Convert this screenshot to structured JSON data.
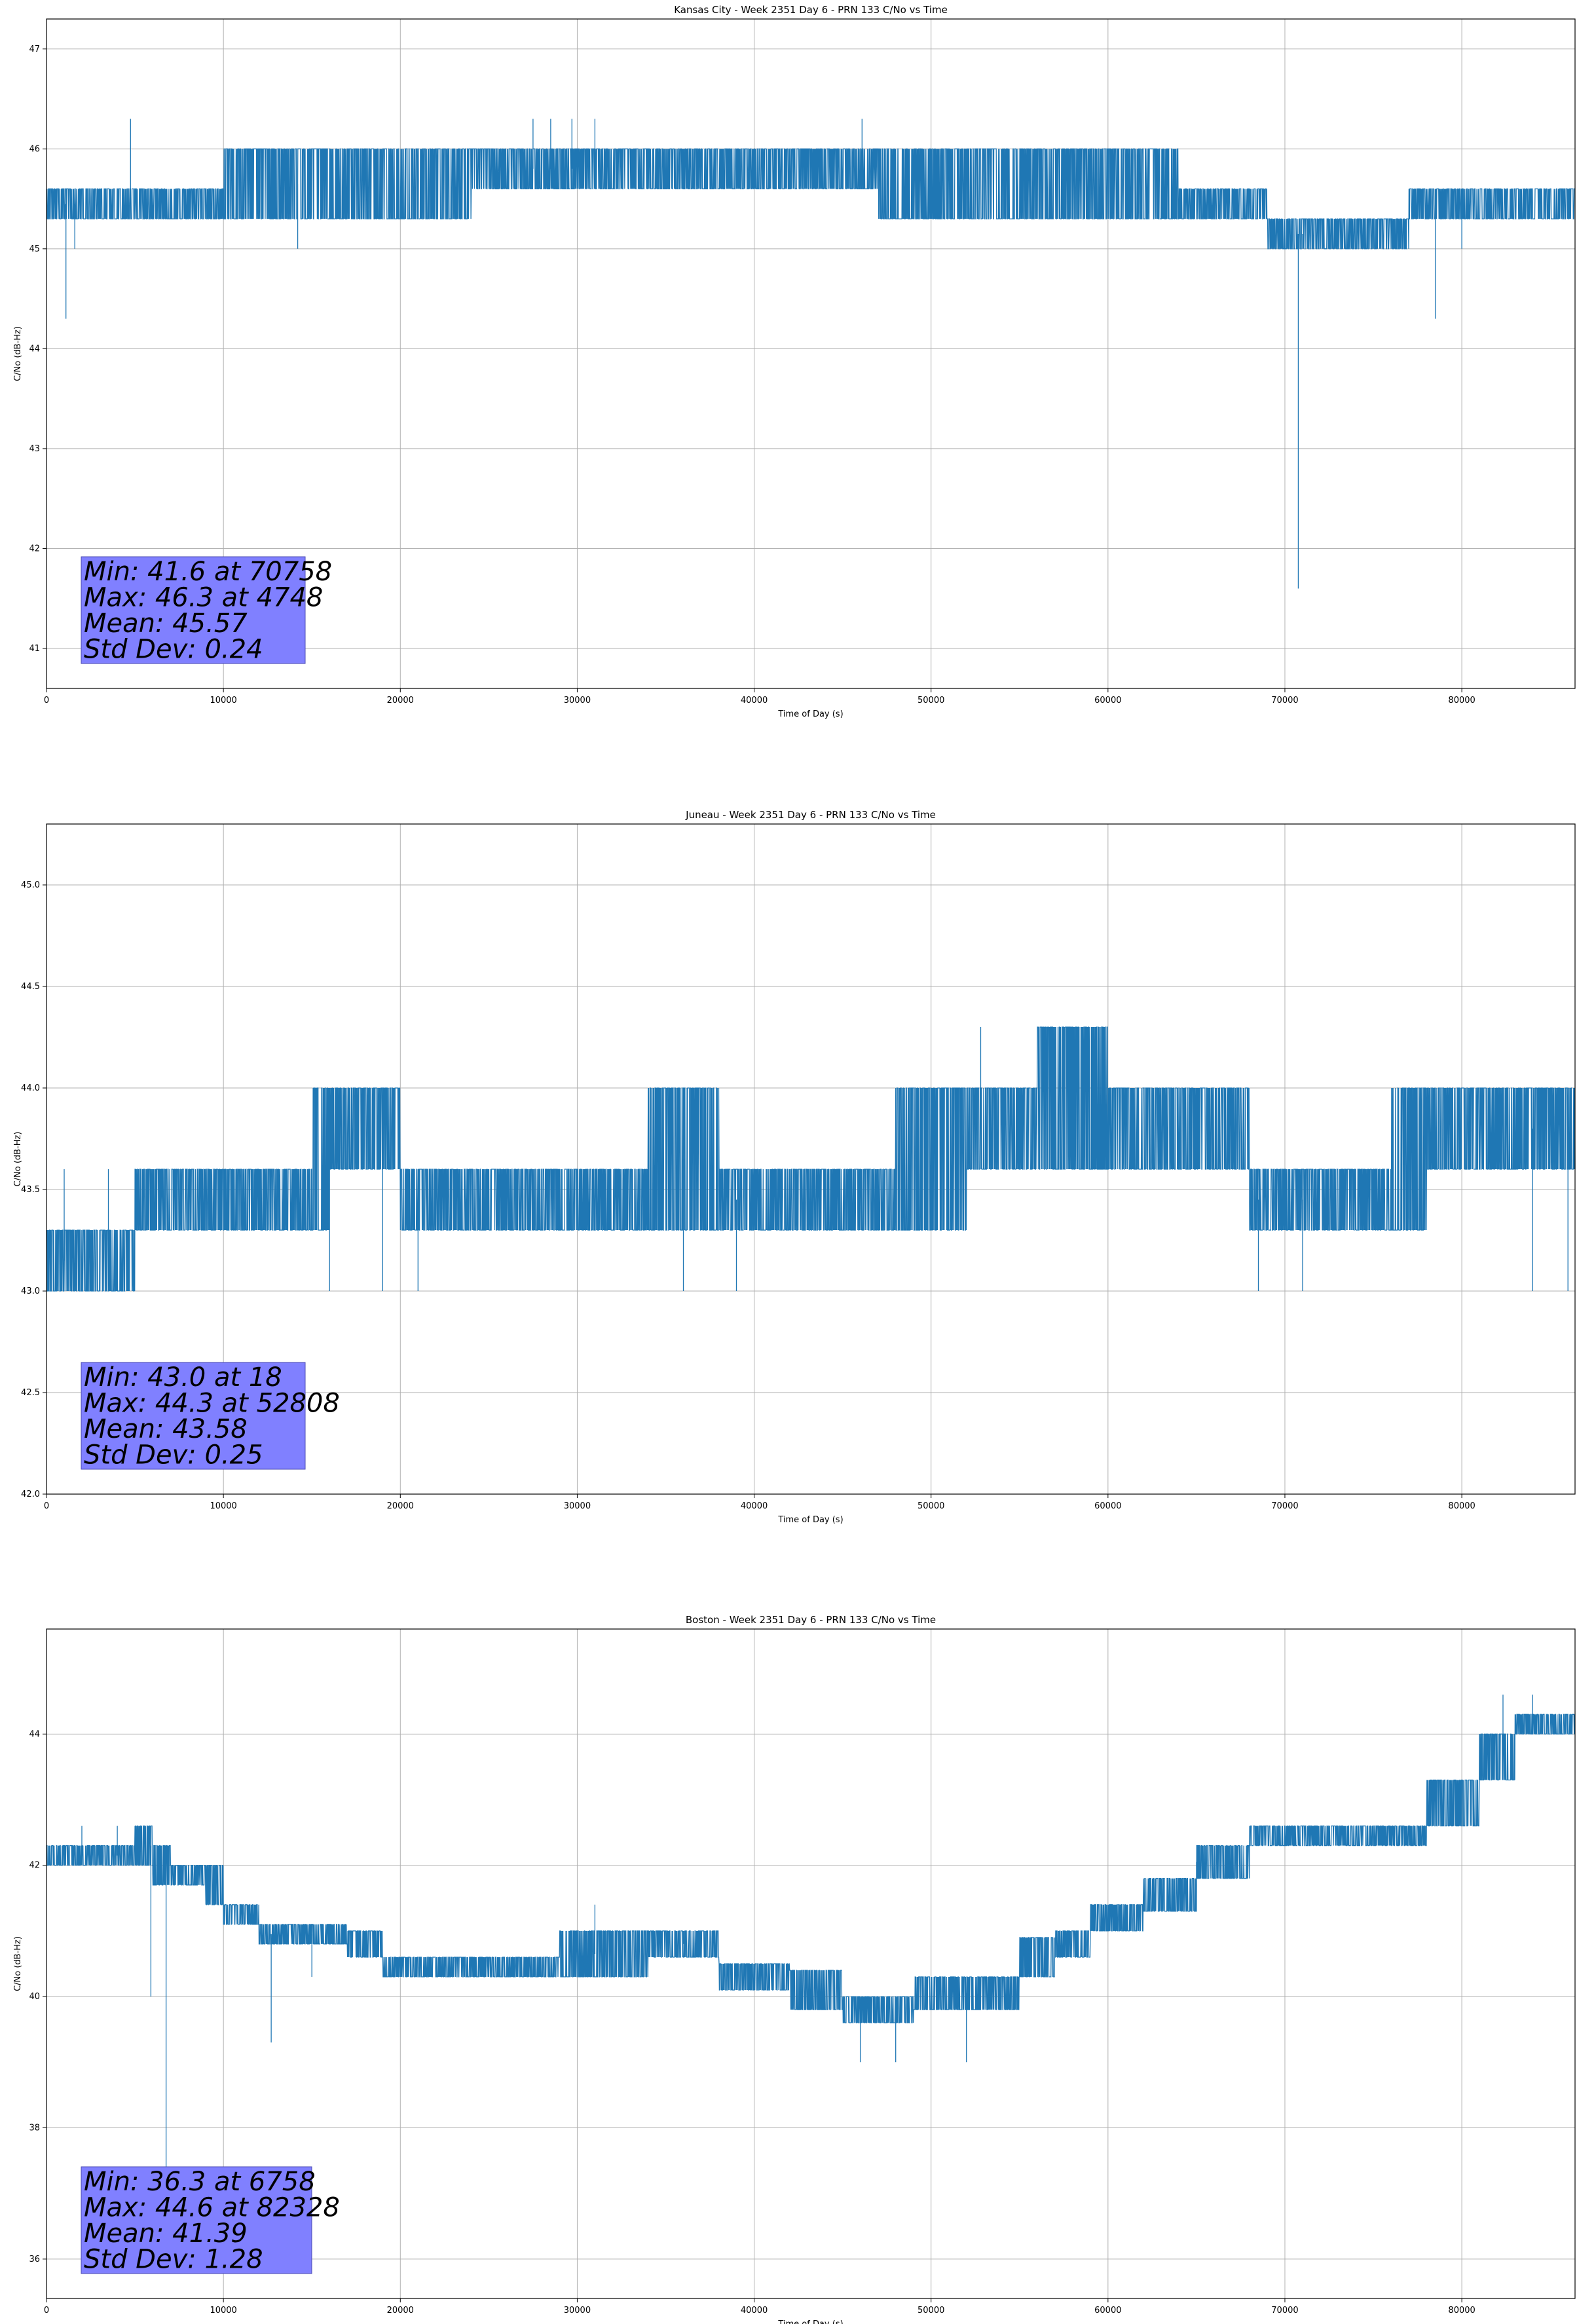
{
  "chart_data": [
    {
      "type": "line",
      "title": "Kansas City - Week 2351 Day 6 - PRN 133 C/No vs Time",
      "xlabel": "Time of Day (s)",
      "ylabel": "C/No (dB-Hz)",
      "xlim": [
        0,
        86400
      ],
      "ylim": [
        40.6,
        47.3
      ],
      "xticks": [
        0,
        10000,
        20000,
        30000,
        40000,
        50000,
        60000,
        70000,
        80000
      ],
      "yticks": [
        41,
        42,
        43,
        44,
        45,
        46,
        47
      ],
      "ytick_decimals": 0,
      "grid": true,
      "line_color": "#1f77b4",
      "stats_box_color": "#8080ff",
      "stats": [
        "Min: 41.6 at 70758",
        "Max: 46.3 at 4748",
        "Mean: 45.57",
        "Std Dev: 0.24"
      ],
      "band_profile": [
        [
          0,
          45.3,
          45.6
        ],
        [
          5000,
          45.3,
          45.6
        ],
        [
          10000,
          45.3,
          46.0
        ],
        [
          20000,
          45.3,
          46.0
        ],
        [
          24000,
          45.6,
          46.0
        ],
        [
          30000,
          45.6,
          46.0
        ],
        [
          40000,
          45.6,
          46.0
        ],
        [
          47000,
          45.3,
          46.0
        ],
        [
          58000,
          45.3,
          46.0
        ],
        [
          64000,
          45.3,
          45.6
        ],
        [
          68000,
          45.3,
          45.6
        ],
        [
          69000,
          45.0,
          45.3
        ],
        [
          75000,
          45.0,
          45.3
        ],
        [
          77000,
          45.3,
          45.6
        ],
        [
          86400,
          45.3,
          45.6
        ]
      ],
      "spikes": [
        [
          1100,
          44.3
        ],
        [
          1600,
          45.0
        ],
        [
          4748,
          46.3
        ],
        [
          14200,
          45.0
        ],
        [
          27500,
          46.3
        ],
        [
          28500,
          46.3
        ],
        [
          29700,
          46.3
        ],
        [
          31000,
          46.3
        ],
        [
          46100,
          46.3
        ],
        [
          70758,
          41.6
        ],
        [
          71000,
          45.0
        ],
        [
          78500,
          44.3
        ],
        [
          80000,
          45.0
        ]
      ]
    },
    {
      "type": "line",
      "title": "Juneau - Week 2351 Day 6 - PRN 133 C/No vs Time",
      "xlabel": "Time of Day (s)",
      "ylabel": "C/No (dB-Hz)",
      "xlim": [
        0,
        86400
      ],
      "ylim": [
        42.0,
        45.3
      ],
      "xticks": [
        0,
        10000,
        20000,
        30000,
        40000,
        50000,
        60000,
        70000,
        80000
      ],
      "yticks": [
        42.0,
        42.5,
        43.0,
        43.5,
        44.0,
        44.5,
        45.0
      ],
      "ytick_decimals": 1,
      "grid": true,
      "line_color": "#1f77b4",
      "stats_box_color": "#8080ff",
      "stats": [
        "Min: 43.0 at 18",
        "Max: 44.3 at 52808",
        "Mean: 43.58",
        "Std Dev: 0.25"
      ],
      "band_profile": [
        [
          0,
          43.0,
          43.3
        ],
        [
          5000,
          43.0,
          43.3
        ],
        [
          5001,
          43.3,
          43.6
        ],
        [
          14000,
          43.3,
          43.6
        ],
        [
          15000,
          43.3,
          44.0
        ],
        [
          16000,
          43.6,
          44.0
        ],
        [
          20000,
          43.3,
          43.6
        ],
        [
          33000,
          43.3,
          43.6
        ],
        [
          34000,
          43.3,
          44.0
        ],
        [
          38000,
          43.3,
          43.6
        ],
        [
          48000,
          43.3,
          44.0
        ],
        [
          52000,
          43.6,
          44.0
        ],
        [
          56000,
          43.6,
          44.3
        ],
        [
          59000,
          43.6,
          44.3
        ],
        [
          60000,
          43.6,
          44.0
        ],
        [
          67000,
          43.6,
          44.0
        ],
        [
          68000,
          43.3,
          43.6
        ],
        [
          74000,
          43.3,
          43.6
        ],
        [
          76000,
          43.3,
          44.0
        ],
        [
          78000,
          43.6,
          44.0
        ],
        [
          86400,
          43.6,
          44.0
        ]
      ],
      "spikes": [
        [
          18,
          43.0
        ],
        [
          1000,
          43.6
        ],
        [
          3500,
          43.6
        ],
        [
          16000,
          43.0
        ],
        [
          19000,
          43.0
        ],
        [
          21000,
          43.0
        ],
        [
          36000,
          43.0
        ],
        [
          39000,
          43.0
        ],
        [
          52808,
          44.3
        ],
        [
          68500,
          43.0
        ],
        [
          71000,
          43.0
        ],
        [
          84000,
          43.0
        ],
        [
          86000,
          43.0
        ]
      ]
    },
    {
      "type": "line",
      "title": "Boston - Week 2351 Day 6 - PRN 133 C/No vs Time",
      "xlabel": "Time of Day (s)",
      "ylabel": "C/No (dB-Hz)",
      "xlim": [
        0,
        86400
      ],
      "ylim": [
        35.4,
        45.6
      ],
      "xticks": [
        0,
        10000,
        20000,
        30000,
        40000,
        50000,
        60000,
        70000,
        80000
      ],
      "yticks": [
        36,
        38,
        40,
        42,
        44
      ],
      "ytick_decimals": 0,
      "grid": true,
      "line_color": "#1f77b4",
      "stats_box_color": "#8080ff",
      "stats": [
        "Min: 36.3 at 6758",
        "Max: 44.6 at 82328",
        "Mean: 41.39",
        "Std Dev: 1.28"
      ],
      "band_profile": [
        [
          0,
          42.0,
          42.3
        ],
        [
          5000,
          42.0,
          42.6
        ],
        [
          6000,
          41.7,
          42.3
        ],
        [
          7000,
          41.7,
          42.0
        ],
        [
          9000,
          41.4,
          42.0
        ],
        [
          10000,
          41.1,
          41.4
        ],
        [
          12000,
          40.8,
          41.1
        ],
        [
          17000,
          40.6,
          41.0
        ],
        [
          19000,
          40.3,
          40.6
        ],
        [
          26000,
          40.3,
          40.6
        ],
        [
          29000,
          40.3,
          41.0
        ],
        [
          34000,
          40.6,
          41.0
        ],
        [
          38000,
          40.1,
          40.5
        ],
        [
          42000,
          39.8,
          40.4
        ],
        [
          45000,
          39.6,
          40.0
        ],
        [
          49000,
          39.8,
          40.3
        ],
        [
          55000,
          40.3,
          40.9
        ],
        [
          57000,
          40.6,
          41.0
        ],
        [
          59000,
          41.0,
          41.4
        ],
        [
          62000,
          41.3,
          41.8
        ],
        [
          65000,
          41.8,
          42.3
        ],
        [
          68000,
          42.3,
          42.6
        ],
        [
          74000,
          42.3,
          42.6
        ],
        [
          78000,
          42.6,
          43.3
        ],
        [
          81000,
          43.3,
          44.0
        ],
        [
          83000,
          44.0,
          44.3
        ],
        [
          86400,
          44.0,
          44.3
        ]
      ],
      "spikes": [
        [
          2000,
          42.6
        ],
        [
          4000,
          42.6
        ],
        [
          5900,
          40.0
        ],
        [
          6758,
          36.3
        ],
        [
          12700,
          39.3
        ],
        [
          15000,
          40.3
        ],
        [
          31000,
          41.4
        ],
        [
          36000,
          41.0
        ],
        [
          46000,
          39.0
        ],
        [
          48000,
          39.0
        ],
        [
          52000,
          39.0
        ],
        [
          65000,
          41.5
        ],
        [
          82328,
          44.6
        ],
        [
          84000,
          44.6
        ]
      ]
    }
  ]
}
